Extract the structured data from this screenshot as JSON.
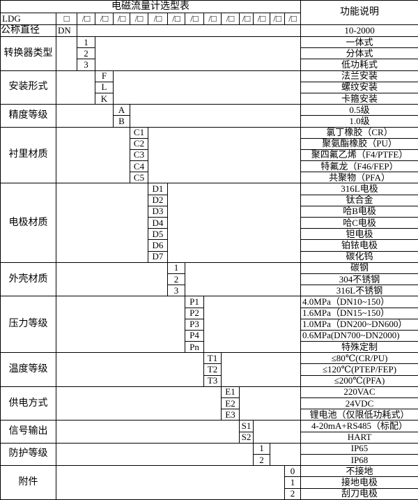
{
  "title": "电磁流量计选型表",
  "function_header": "功能说明",
  "model_row": {
    "label": "LDG",
    "first_box": "□",
    "boxes": [
      "/□",
      "/□",
      "/□",
      "/□",
      "/□",
      "/□",
      "/□",
      "/□",
      "/□",
      "/□",
      "/□",
      "/□",
      "/□"
    ]
  },
  "nominal_diameter": {
    "label": "公称直径",
    "code": "DN",
    "function": "10-2000"
  },
  "groups": [
    {
      "label": "转换器类型",
      "col": 2,
      "items": [
        {
          "code": "1",
          "function": "一体式"
        },
        {
          "code": "2",
          "function": "分体式"
        },
        {
          "code": "3",
          "function": "低功耗式"
        }
      ]
    },
    {
      "label": "安装形式",
      "col": 3,
      "items": [
        {
          "code": "F",
          "function": "法兰安装"
        },
        {
          "code": "L",
          "function": "螺纹安装"
        },
        {
          "code": "K",
          "function": "卡箍安装"
        }
      ]
    },
    {
      "label": "精度等级",
      "col": 4,
      "items": [
        {
          "code": "A",
          "function": "0.5级"
        },
        {
          "code": "B",
          "function": "1.0级"
        }
      ]
    },
    {
      "label": "衬里材质",
      "col": 5,
      "items": [
        {
          "code": "C1",
          "function": "氯丁橡胶（CR）"
        },
        {
          "code": "C2",
          "function": "聚氨酯橡胶（PU）"
        },
        {
          "code": "C3",
          "function": "聚四氟乙烯（F4/PTFE）"
        },
        {
          "code": "C4",
          "function": "特氟龙（F46/FEP）"
        },
        {
          "code": "C5",
          "function": "共聚物（PFA）"
        }
      ]
    },
    {
      "label": "电极材质",
      "col": 6,
      "items": [
        {
          "code": "D1",
          "function": "316L电极"
        },
        {
          "code": "D2",
          "function": "钛合金"
        },
        {
          "code": "D3",
          "function": "哈B电极"
        },
        {
          "code": "D4",
          "function": "哈C电极"
        },
        {
          "code": "D5",
          "function": "钽电极"
        },
        {
          "code": "D6",
          "function": "铂铱电极"
        },
        {
          "code": "D7",
          "function": "碳化钨"
        }
      ]
    },
    {
      "label": "外壳材质",
      "col": 7,
      "items": [
        {
          "code": "1",
          "function": "碳钢"
        },
        {
          "code": "2",
          "function": "304不锈钢"
        },
        {
          "code": "3",
          "function": "316L不锈钢"
        }
      ]
    },
    {
      "label": "压力等级",
      "col": 8,
      "align": "left",
      "items": [
        {
          "code": "P1",
          "function": "4.0MPa（DN10~150）"
        },
        {
          "code": "P2",
          "function": "1.6MPa（DN15~150）"
        },
        {
          "code": "P3",
          "function": "1.0MPa（DN200~DN600）"
        },
        {
          "code": "P4",
          "function": "0.6MPa(DN700~DN2000)"
        },
        {
          "code": "Pn",
          "function": "特殊定制",
          "center": true
        }
      ]
    },
    {
      "label": "温度等级",
      "col": 9,
      "items": [
        {
          "code": "T1",
          "function": "≤80℃(CR/PU)"
        },
        {
          "code": "T2",
          "function": "≤120℃(PTEP/FEP)"
        },
        {
          "code": "T3",
          "function": "≤200℃(PFA)"
        }
      ]
    },
    {
      "label": "供电方式",
      "col": 10,
      "items": [
        {
          "code": "E1",
          "function": "220VAC"
        },
        {
          "code": "E2",
          "function": "24VDC"
        },
        {
          "code": "E3",
          "function": "锂电池（仅限低功耗式）"
        }
      ]
    },
    {
      "label": "信号输出",
      "col": 11,
      "items": [
        {
          "code": "S1",
          "function": "4-20mA+RS485（标配）"
        },
        {
          "code": "S2",
          "function": "HART"
        }
      ]
    },
    {
      "label": "防护等级",
      "col": 12,
      "items": [
        {
          "code": "1",
          "function": "IP65"
        },
        {
          "code": "2",
          "function": "IP68"
        }
      ]
    },
    {
      "label": "附件",
      "col": 14,
      "items": [
        {
          "code": "0",
          "function": "不接地"
        },
        {
          "code": "1",
          "function": "接地电极"
        },
        {
          "code": "2",
          "function": "刮刀电极"
        }
      ]
    }
  ]
}
